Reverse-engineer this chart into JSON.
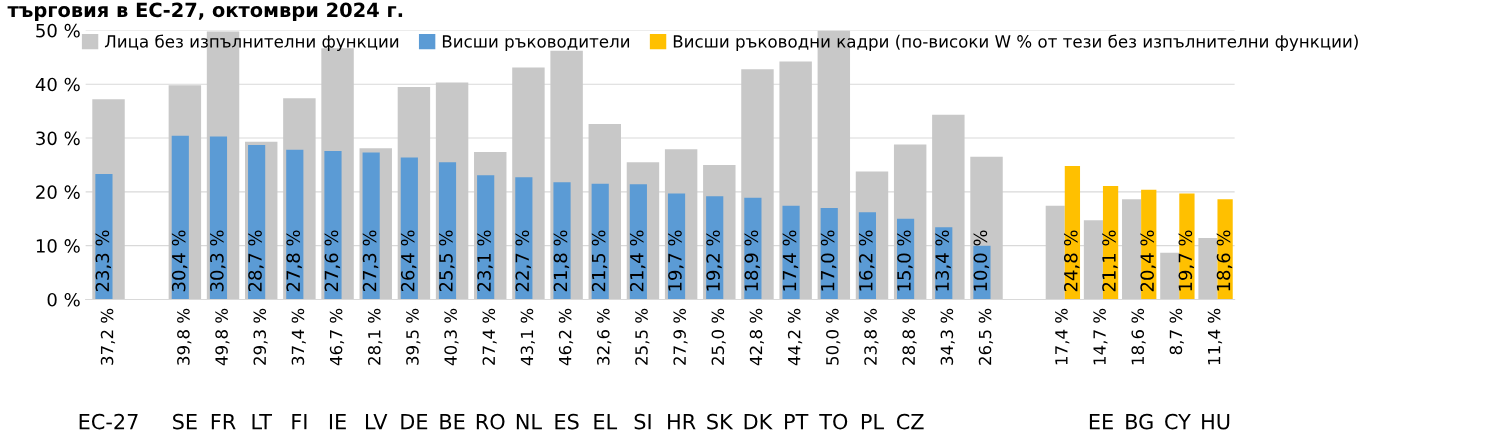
{
  "chart_data": {
    "type": "bar",
    "title": "търговия в ЕС-27, октомври 2024 г.",
    "categories": [
      "EC-27",
      null,
      "SE",
      "FR",
      "LT",
      "FI",
      "IE",
      "LV",
      "DE",
      "BE",
      "RO",
      "NL",
      "ES",
      "EL",
      "SI",
      "HR",
      "SK",
      "DK",
      "PT",
      "TO",
      "PL",
      "CZ",
      null,
      null,
      null,
      null,
      "EE",
      "BG",
      "CY",
      "HU"
    ],
    "ylim": [
      0,
      50
    ],
    "yticks": [
      {
        "value": 0,
        "label": "0 %"
      },
      {
        "value": 10,
        "label": "10 %"
      },
      {
        "value": 20,
        "label": "20 %"
      },
      {
        "value": 30,
        "label": "30 %"
      },
      {
        "value": 40,
        "label": "40 %"
      },
      {
        "value": 50,
        "label": "50 %"
      }
    ],
    "grid": "y",
    "legend": "top",
    "series": [
      {
        "name": "Лица без изпълнителни функции",
        "color": "#c8c8c8",
        "values": [
          37.2,
          null,
          39.8,
          49.8,
          29.3,
          37.4,
          46.7,
          28.1,
          39.5,
          40.3,
          27.4,
          43.1,
          46.2,
          32.6,
          25.5,
          27.9,
          25.0,
          42.8,
          44.2,
          50.0,
          23.8,
          28.8,
          34.3,
          26.5,
          null,
          17.4,
          14.7,
          18.6,
          8.7,
          11.4
        ],
        "value_labels": [
          "37,2 %",
          null,
          "39,8 %",
          "49,8 %",
          "29,3 %",
          "37,4 %",
          "46,7 %",
          "28,1 %",
          "39,5 %",
          "40,3 %",
          "27,4 %",
          "43,1 %",
          "46,2 %",
          "32,6 %",
          "25,5 %",
          "27,9 %",
          "25,0 %",
          "42,8 %",
          "44,2 %",
          "50,0 %",
          "23,8 %",
          "28,8 %",
          "34,3 %",
          "26,5 %",
          null,
          "17,4 %",
          "14,7 %",
          "18,6 %",
          "8,7 %",
          "11,4 %"
        ]
      },
      {
        "name": "Висши ръководители",
        "color": "#5b9bd5",
        "values": [
          23.3,
          null,
          30.4,
          30.3,
          28.7,
          27.8,
          27.6,
          27.3,
          26.4,
          25.5,
          23.1,
          22.7,
          21.8,
          21.5,
          21.4,
          19.7,
          19.2,
          18.9,
          17.4,
          17.0,
          16.2,
          15.0,
          13.4,
          10.0,
          null,
          null,
          null,
          null,
          null,
          null
        ],
        "value_labels": [
          "23,3 %",
          null,
          "30,4 %",
          "30,3 %",
          "28,7 %",
          "27,8 %",
          "27,6 %",
          "27,3 %",
          "26,4 %",
          "25,5 %",
          "23,1 %",
          "22,7 %",
          "21,8 %",
          "21,5 %",
          "21,4 %",
          "19,7 %",
          "19,2 %",
          "18,9 %",
          "17,4 %",
          "17,0 %",
          "16,2 %",
          "15,0 %",
          "13,4 %",
          "10,0 %",
          null,
          null,
          null,
          null,
          null,
          null
        ]
      },
      {
        "name": "Висши ръководни кадри (по-високи W % от тези без изпълнителни функции)",
        "color": "#ffc000",
        "values": [
          null,
          null,
          null,
          null,
          null,
          null,
          null,
          null,
          null,
          null,
          null,
          null,
          null,
          null,
          null,
          null,
          null,
          null,
          null,
          null,
          null,
          null,
          null,
          null,
          null,
          24.8,
          21.1,
          20.4,
          19.7,
          18.6
        ],
        "value_labels": [
          null,
          null,
          null,
          null,
          null,
          null,
          null,
          null,
          null,
          null,
          null,
          null,
          null,
          null,
          null,
          null,
          null,
          null,
          null,
          null,
          null,
          null,
          null,
          null,
          null,
          "24,8 %",
          "21,1 %",
          "20,4 %",
          "19,7 %",
          "18,6 %"
        ]
      }
    ]
  }
}
